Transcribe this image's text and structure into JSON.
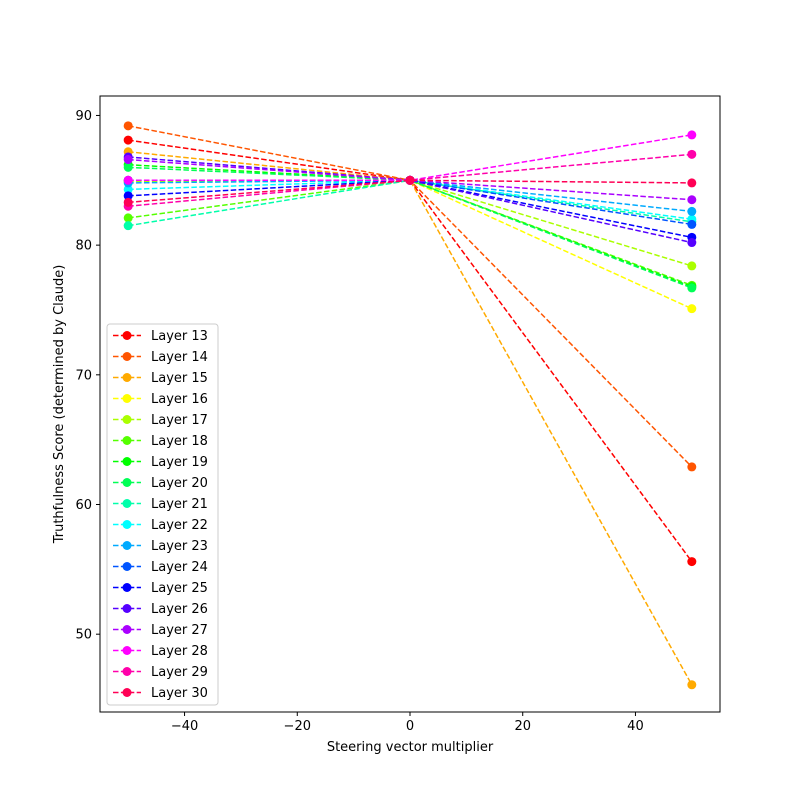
{
  "chart_data": {
    "type": "line",
    "xlabel": "Steering vector multiplier",
    "ylabel": "Truthfulness Score (determined by Claude)",
    "x": [
      -50,
      0,
      50
    ],
    "xlim": [
      -55,
      55
    ],
    "ylim": [
      44,
      91.5
    ],
    "xticks": [
      -40,
      -20,
      0,
      20,
      40
    ],
    "xtick_labels": [
      "−40",
      "−20",
      "0",
      "20",
      "40"
    ],
    "yticks": [
      50,
      60,
      70,
      80,
      90
    ],
    "ytick_labels": [
      "50",
      "60",
      "70",
      "80",
      "90"
    ],
    "grid": false,
    "legend_position": "lower-left",
    "line_style": "dashed",
    "marker": "circle",
    "series": [
      {
        "name": "Layer 13",
        "color": "#ff0000",
        "values": [
          88.1,
          85.0,
          55.6
        ]
      },
      {
        "name": "Layer 14",
        "color": "#ff5500",
        "values": [
          89.2,
          85.0,
          62.9
        ]
      },
      {
        "name": "Layer 15",
        "color": "#ffaa00",
        "values": [
          87.2,
          85.0,
          46.1
        ]
      },
      {
        "name": "Layer 16",
        "color": "#ffff00",
        "values": [
          85.0,
          85.0,
          75.1
        ]
      },
      {
        "name": "Layer 17",
        "color": "#aaff00",
        "values": [
          84.9,
          85.0,
          78.4
        ]
      },
      {
        "name": "Layer 18",
        "color": "#55ff00",
        "values": [
          82.1,
          85.0,
          76.9
        ]
      },
      {
        "name": "Layer 19",
        "color": "#00ff00",
        "values": [
          86.2,
          85.0,
          76.8
        ]
      },
      {
        "name": "Layer 20",
        "color": "#00ff55",
        "values": [
          86.0,
          85.0,
          76.7
        ]
      },
      {
        "name": "Layer 21",
        "color": "#00ffaa",
        "values": [
          81.5,
          85.0,
          81.8
        ]
      },
      {
        "name": "Layer 22",
        "color": "#00ffff",
        "values": [
          84.3,
          85.0,
          82.0
        ]
      },
      {
        "name": "Layer 23",
        "color": "#00aaff",
        "values": [
          84.8,
          85.0,
          82.6
        ]
      },
      {
        "name": "Layer 24",
        "color": "#0055ff",
        "values": [
          85.0,
          85.0,
          81.6
        ]
      },
      {
        "name": "Layer 25",
        "color": "#0000ff",
        "values": [
          83.8,
          85.0,
          80.6
        ]
      },
      {
        "name": "Layer 26",
        "color": "#5500ff",
        "values": [
          86.8,
          85.0,
          80.2
        ]
      },
      {
        "name": "Layer 27",
        "color": "#aa00ff",
        "values": [
          86.6,
          85.0,
          83.5
        ]
      },
      {
        "name": "Layer 28",
        "color": "#ff00ff",
        "values": [
          85.0,
          85.0,
          88.5
        ]
      },
      {
        "name": "Layer 29",
        "color": "#ff00aa",
        "values": [
          83.0,
          85.0,
          87.0
        ]
      },
      {
        "name": "Layer 30",
        "color": "#ff0055",
        "values": [
          83.3,
          85.0,
          84.8
        ]
      }
    ]
  }
}
